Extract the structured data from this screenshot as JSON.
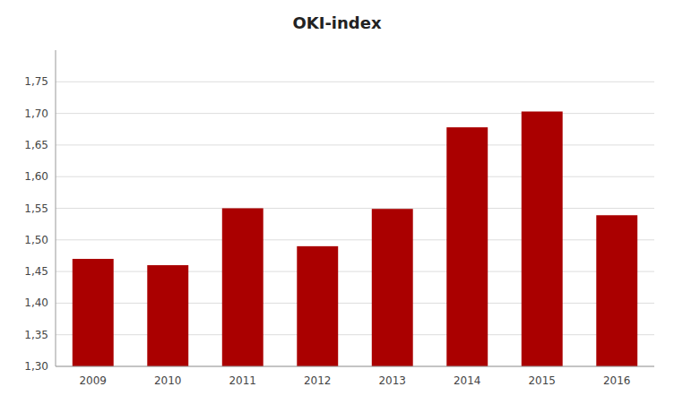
{
  "chart_data": {
    "type": "bar",
    "title": "OKI-index",
    "categories": [
      "2009",
      "2010",
      "2011",
      "2012",
      "2013",
      "2014",
      "2015",
      "2016"
    ],
    "values": [
      1.47,
      1.46,
      1.55,
      1.49,
      1.549,
      1.678,
      1.703,
      1.539
    ],
    "color": "#AA0000",
    "ylim": [
      1.3,
      1.8
    ],
    "yticks": [
      {
        "value": 1.3,
        "label": "1,30"
      },
      {
        "value": 1.35,
        "label": "1,35"
      },
      {
        "value": 1.4,
        "label": "1,40"
      },
      {
        "value": 1.45,
        "label": "1,45"
      },
      {
        "value": 1.5,
        "label": "1,50"
      },
      {
        "value": 1.55,
        "label": "1,55"
      },
      {
        "value": 1.6,
        "label": "1,60"
      },
      {
        "value": 1.65,
        "label": "1,65"
      },
      {
        "value": 1.7,
        "label": "1,70"
      },
      {
        "value": 1.75,
        "label": "1,75"
      }
    ],
    "grid": true
  }
}
